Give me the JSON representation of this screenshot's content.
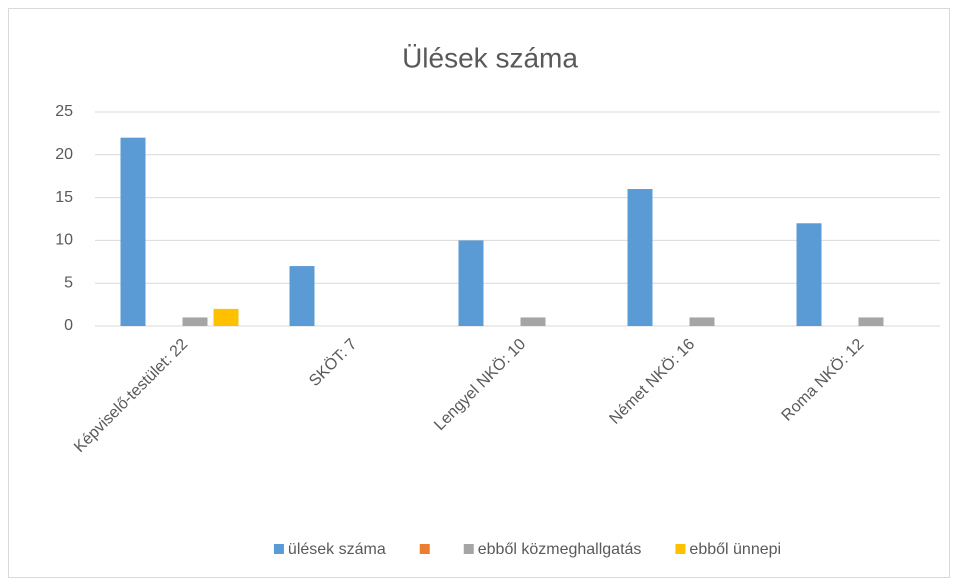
{
  "chart_data": {
    "type": "bar",
    "title": "Ülések száma",
    "categories": [
      "Képviselő-testület: 22",
      "SKÖT: 7",
      "Lengyel NKÖ: 10",
      "Német NKÖ: 16",
      "Roma NKÖ: 12"
    ],
    "series": [
      {
        "name": "ülések száma",
        "color": "#5b9bd5",
        "values": [
          22,
          7,
          10,
          16,
          12
        ]
      },
      {
        "color": "#ed7d31",
        "values": [
          0,
          0,
          0,
          0,
          0
        ]
      },
      {
        "name": "ebből közmeghallgatás",
        "color": "#a5a5a5",
        "values": [
          1,
          0,
          1,
          1,
          1
        ]
      },
      {
        "name": "ebből ünnepi",
        "color": "#ffc000",
        "values": [
          2,
          0,
          0,
          0,
          0
        ]
      }
    ],
    "ylim": [
      0,
      25
    ],
    "yticks": [
      0,
      5,
      10,
      15,
      20,
      25
    ],
    "grid": true,
    "legend": "bottom"
  }
}
